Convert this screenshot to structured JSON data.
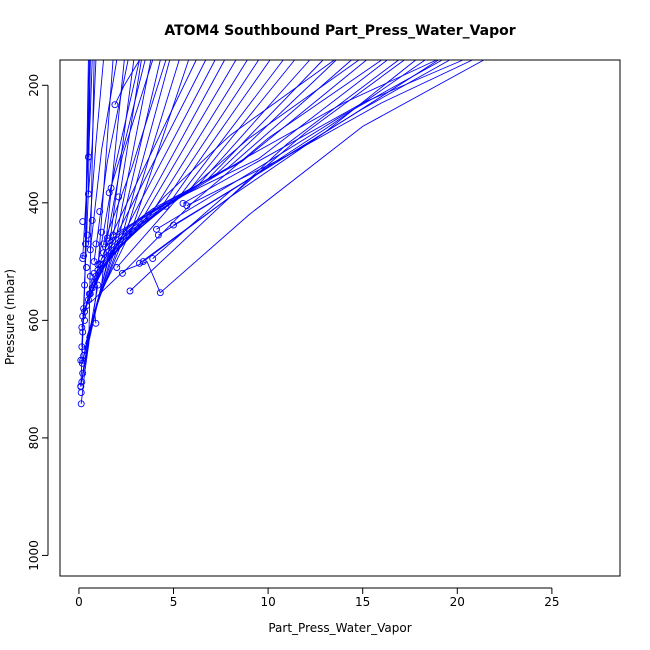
{
  "chart_data": {
    "type": "line",
    "title": "ATOM4 Southbound Part_Press_Water_Vapor",
    "xlabel": "Part_Press_Water_Vapor",
    "ylabel": "Pressure (mbar)",
    "xlim": [
      -1,
      28.6
    ],
    "ylim": [
      1035,
      157
    ],
    "y_reversed": true,
    "x_ticks": [
      "0",
      "5",
      "10",
      "15",
      "20",
      "25"
    ],
    "y_ticks": [
      "200",
      "400",
      "600",
      "800",
      "1000"
    ],
    "color": "#0000ff",
    "grid": false,
    "series": [
      {
        "x": [
          0.12,
          0.3,
          0.52,
          0.8
        ],
        "y": [
          742,
          690,
          640,
          157
        ]
      },
      {
        "x": [
          0.1,
          0.4,
          0.9,
          1.8
        ],
        "y": [
          712,
          650,
          560,
          157
        ]
      },
      {
        "x": [
          0.15,
          0.5,
          1.2,
          2.4
        ],
        "y": [
          705,
          640,
          540,
          157
        ]
      },
      {
        "x": [
          0.2,
          0.6,
          1.5,
          2.9
        ],
        "y": [
          690,
          620,
          500,
          157
        ]
      },
      {
        "x": [
          0.18,
          0.7,
          1.7,
          3.3
        ],
        "y": [
          673,
          600,
          480,
          157
        ]
      },
      {
        "x": [
          0.2,
          0.8,
          1.9,
          3.8
        ],
        "y": [
          668,
          590,
          470,
          157
        ]
      },
      {
        "x": [
          0.25,
          0.9,
          2.1,
          4.3
        ],
        "y": [
          660,
          580,
          460,
          157
        ]
      },
      {
        "x": [
          0.3,
          1.0,
          2.3,
          4.8
        ],
        "y": [
          650,
          570,
          455,
          157
        ]
      },
      {
        "x": [
          0.35,
          1.1,
          2.5,
          5.3
        ],
        "y": [
          640,
          560,
          450,
          157
        ]
      },
      {
        "x": [
          0.4,
          1.2,
          2.8,
          5.8
        ],
        "y": [
          630,
          550,
          445,
          157
        ]
      },
      {
        "x": [
          0.15,
          0.55,
          1.5,
          6.2
        ],
        "y": [
          612,
          550,
          470,
          157
        ]
      },
      {
        "x": [
          0.2,
          0.7,
          1.9,
          6.7
        ],
        "y": [
          593,
          540,
          460,
          157
        ]
      },
      {
        "x": [
          0.3,
          0.9,
          2.4,
          7.2
        ],
        "y": [
          585,
          530,
          450,
          157
        ]
      },
      {
        "x": [
          0.4,
          1.1,
          2.9,
          7.7
        ],
        "y": [
          575,
          520,
          440,
          157
        ]
      },
      {
        "x": [
          0.5,
          1.3,
          3.3,
          8.3
        ],
        "y": [
          565,
          510,
          430,
          157
        ]
      },
      {
        "x": [
          0.6,
          1.5,
          3.8,
          8.9
        ],
        "y": [
          555,
          500,
          420,
          157
        ]
      },
      {
        "x": [
          0.7,
          1.7,
          4.3,
          9.5
        ],
        "y": [
          545,
          490,
          410,
          157
        ]
      },
      {
        "x": [
          0.8,
          1.9,
          4.8,
          10.1
        ],
        "y": [
          535,
          480,
          400,
          157
        ]
      },
      {
        "x": [
          0.9,
          2.1,
          5.3,
          10.8
        ],
        "y": [
          525,
          470,
          390,
          157
        ]
      },
      {
        "x": [
          1.0,
          2.3,
          5.8,
          11.4
        ],
        "y": [
          515,
          460,
          380,
          157
        ]
      },
      {
        "x": [
          1.1,
          2.6,
          6.3,
          12.2
        ],
        "y": [
          505,
          450,
          370,
          157
        ]
      },
      {
        "x": [
          1.2,
          2.9,
          6.8,
          12.9
        ],
        "y": [
          495,
          440,
          360,
          157
        ]
      },
      {
        "x": [
          1.3,
          3.2,
          7.3,
          13.6
        ],
        "y": [
          485,
          430,
          350,
          157
        ]
      },
      {
        "x": [
          1.4,
          3.5,
          7.9,
          14.4
        ],
        "y": [
          475,
          420,
          340,
          157
        ]
      },
      {
        "x": [
          1.6,
          3.9,
          8.6,
          15.2
        ],
        "y": [
          465,
          410,
          330,
          157
        ]
      },
      {
        "x": [
          1.8,
          4.4,
          9.5,
          16.3
        ],
        "y": [
          455,
          405,
          325,
          157
        ]
      },
      {
        "x": [
          0.3,
          0.5,
          0.6
        ],
        "y": [
          540,
          380,
          157
        ]
      },
      {
        "x": [
          0.5,
          0.9,
          1.3
        ],
        "y": [
          470,
          300,
          157
        ]
      },
      {
        "x": [
          0.6,
          1.2,
          2.0
        ],
        "y": [
          480,
          310,
          157
        ]
      },
      {
        "x": [
          0.8,
          1.5,
          2.6
        ],
        "y": [
          500,
          330,
          157
        ]
      },
      {
        "x": [
          1.0,
          1.9,
          3.2
        ],
        "y": [
          505,
          340,
          157
        ]
      },
      {
        "x": [
          1.5,
          2.3,
          3.9
        ],
        "y": [
          460,
          320,
          157
        ]
      },
      {
        "x": [
          1.3,
          2.8,
          4.6
        ],
        "y": [
          470,
          340,
          157
        ]
      },
      {
        "x": [
          1.9,
          2.4,
          3.2
        ],
        "y": [
          233,
          200,
          157
        ]
      },
      {
        "x": [
          0.1,
          0.3,
          0.5
        ],
        "y": [
          713,
          550,
          157
        ]
      },
      {
        "x": [
          0.15,
          0.35,
          0.55
        ],
        "y": [
          645,
          500,
          157
        ]
      },
      {
        "x": [
          0.2,
          0.45,
          0.6
        ],
        "y": [
          495,
          350,
          157
        ]
      },
      {
        "x": [
          0.5,
          0.6,
          0.7
        ],
        "y": [
          322,
          250,
          157
        ]
      },
      {
        "x": [
          0.5,
          0.7,
          0.9
        ],
        "y": [
          385,
          300,
          157
        ]
      },
      {
        "x": [
          1.6,
          2.4,
          3.5
        ],
        "y": [
          383,
          300,
          157
        ]
      },
      {
        "x": [
          4.3,
          3.6,
          2.4,
          0.6
        ],
        "y": [
          553,
          500,
          515,
          570
        ]
      },
      {
        "x": [
          4.3,
          9.0,
          15.0,
          21.4
        ],
        "y": [
          553,
          420,
          270,
          157
        ]
      },
      {
        "x": [
          5.5,
          10.0,
          15.0,
          20.3
        ],
        "y": [
          401,
          320,
          230,
          157
        ]
      },
      {
        "x": [
          5.7,
          11.0,
          16.0,
          20.8
        ],
        "y": [
          405,
          320,
          230,
          157
        ]
      },
      {
        "x": [
          4.6,
          9.0,
          14.0,
          18.9
        ],
        "y": [
          406,
          320,
          230,
          157
        ]
      },
      {
        "x": [
          5.0,
          10.0,
          15.0,
          19.6
        ],
        "y": [
          438,
          340,
          240,
          157
        ]
      },
      {
        "x": [
          4.1,
          9.0,
          14.0,
          19.2
        ],
        "y": [
          445,
          350,
          250,
          157
        ]
      },
      {
        "x": [
          4.2,
          9.0,
          14.0,
          19.0
        ],
        "y": [
          455,
          360,
          260,
          157
        ]
      },
      {
        "x": [
          3.4,
          8.0,
          13.0,
          17.8
        ],
        "y": [
          500,
          390,
          280,
          157
        ]
      },
      {
        "x": [
          3.2,
          8.0,
          12.0,
          17.2
        ],
        "y": [
          503,
          390,
          280,
          157
        ]
      },
      {
        "x": [
          3.9,
          8.0,
          13.0,
          18.3
        ],
        "y": [
          495,
          380,
          275,
          157
        ]
      },
      {
        "x": [
          2.7,
          7.0,
          11.0,
          16.9
        ],
        "y": [
          550,
          420,
          300,
          157
        ]
      },
      {
        "x": [
          2.3,
          6.0,
          10.0,
          16.0
        ],
        "y": [
          520,
          400,
          290,
          157
        ]
      },
      {
        "x": [
          2.0,
          5.0,
          9.0,
          14.8
        ],
        "y": [
          510,
          400,
          290,
          157
        ]
      },
      {
        "x": [
          1.8,
          4.5,
          8.0,
          13.5
        ],
        "y": [
          490,
          390,
          285,
          157
        ]
      },
      {
        "x": [
          0.9,
          0.8,
          1.0
        ],
        "y": [
          605,
          580,
          540
        ]
      }
    ],
    "points": [
      {
        "x": 0.12,
        "y": 742
      },
      {
        "x": 0.1,
        "y": 712
      },
      {
        "x": 0.15,
        "y": 705
      },
      {
        "x": 0.2,
        "y": 690
      },
      {
        "x": 0.18,
        "y": 673
      },
      {
        "x": 0.2,
        "y": 668
      },
      {
        "x": 0.25,
        "y": 660
      },
      {
        "x": 0.3,
        "y": 650
      },
      {
        "x": 0.15,
        "y": 612
      },
      {
        "x": 0.2,
        "y": 593
      },
      {
        "x": 0.3,
        "y": 585
      },
      {
        "x": 0.4,
        "y": 575
      },
      {
        "x": 0.5,
        "y": 565
      },
      {
        "x": 0.6,
        "y": 555
      },
      {
        "x": 0.7,
        "y": 545
      },
      {
        "x": 0.8,
        "y": 535
      },
      {
        "x": 0.9,
        "y": 525
      },
      {
        "x": 1.0,
        "y": 515
      },
      {
        "x": 1.1,
        "y": 505
      },
      {
        "x": 1.2,
        "y": 495
      },
      {
        "x": 1.3,
        "y": 485
      },
      {
        "x": 1.4,
        "y": 475
      },
      {
        "x": 1.6,
        "y": 465
      },
      {
        "x": 1.8,
        "y": 455
      },
      {
        "x": 0.3,
        "y": 540
      },
      {
        "x": 0.5,
        "y": 470
      },
      {
        "x": 0.6,
        "y": 480
      },
      {
        "x": 0.8,
        "y": 500
      },
      {
        "x": 1.0,
        "y": 505
      },
      {
        "x": 1.5,
        "y": 460
      },
      {
        "x": 1.3,
        "y": 470
      },
      {
        "x": 1.9,
        "y": 233
      },
      {
        "x": 0.1,
        "y": 713
      },
      {
        "x": 0.15,
        "y": 645
      },
      {
        "x": 0.2,
        "y": 495
      },
      {
        "x": 0.5,
        "y": 322
      },
      {
        "x": 0.5,
        "y": 385
      },
      {
        "x": 1.6,
        "y": 383
      },
      {
        "x": 4.3,
        "y": 553
      },
      {
        "x": 5.5,
        "y": 401
      },
      {
        "x": 5.7,
        "y": 405
      },
      {
        "x": 4.6,
        "y": 406
      },
      {
        "x": 5.0,
        "y": 438
      },
      {
        "x": 4.1,
        "y": 445
      },
      {
        "x": 4.2,
        "y": 455
      },
      {
        "x": 3.4,
        "y": 500
      },
      {
        "x": 3.2,
        "y": 503
      },
      {
        "x": 3.9,
        "y": 495
      },
      {
        "x": 2.7,
        "y": 550
      },
      {
        "x": 2.3,
        "y": 520
      },
      {
        "x": 2.0,
        "y": 510
      },
      {
        "x": 0.9,
        "y": 605
      },
      {
        "x": 0.2,
        "y": 432
      },
      {
        "x": 0.35,
        "y": 470
      },
      {
        "x": 0.45,
        "y": 455
      },
      {
        "x": 0.25,
        "y": 490
      },
      {
        "x": 0.7,
        "y": 430
      },
      {
        "x": 1.1,
        "y": 415
      },
      {
        "x": 1.7,
        "y": 375
      },
      {
        "x": 0.4,
        "y": 510
      },
      {
        "x": 0.6,
        "y": 525
      },
      {
        "x": 0.8,
        "y": 520
      },
      {
        "x": 1.0,
        "y": 540
      },
      {
        "x": 0.55,
        "y": 555
      },
      {
        "x": 0.9,
        "y": 470
      },
      {
        "x": 1.2,
        "y": 450
      },
      {
        "x": 2.1,
        "y": 390
      },
      {
        "x": 0.12,
        "y": 723
      },
      {
        "x": 0.1,
        "y": 668
      },
      {
        "x": 0.2,
        "y": 620
      },
      {
        "x": 0.3,
        "y": 600
      },
      {
        "x": 0.25,
        "y": 580
      }
    ]
  }
}
